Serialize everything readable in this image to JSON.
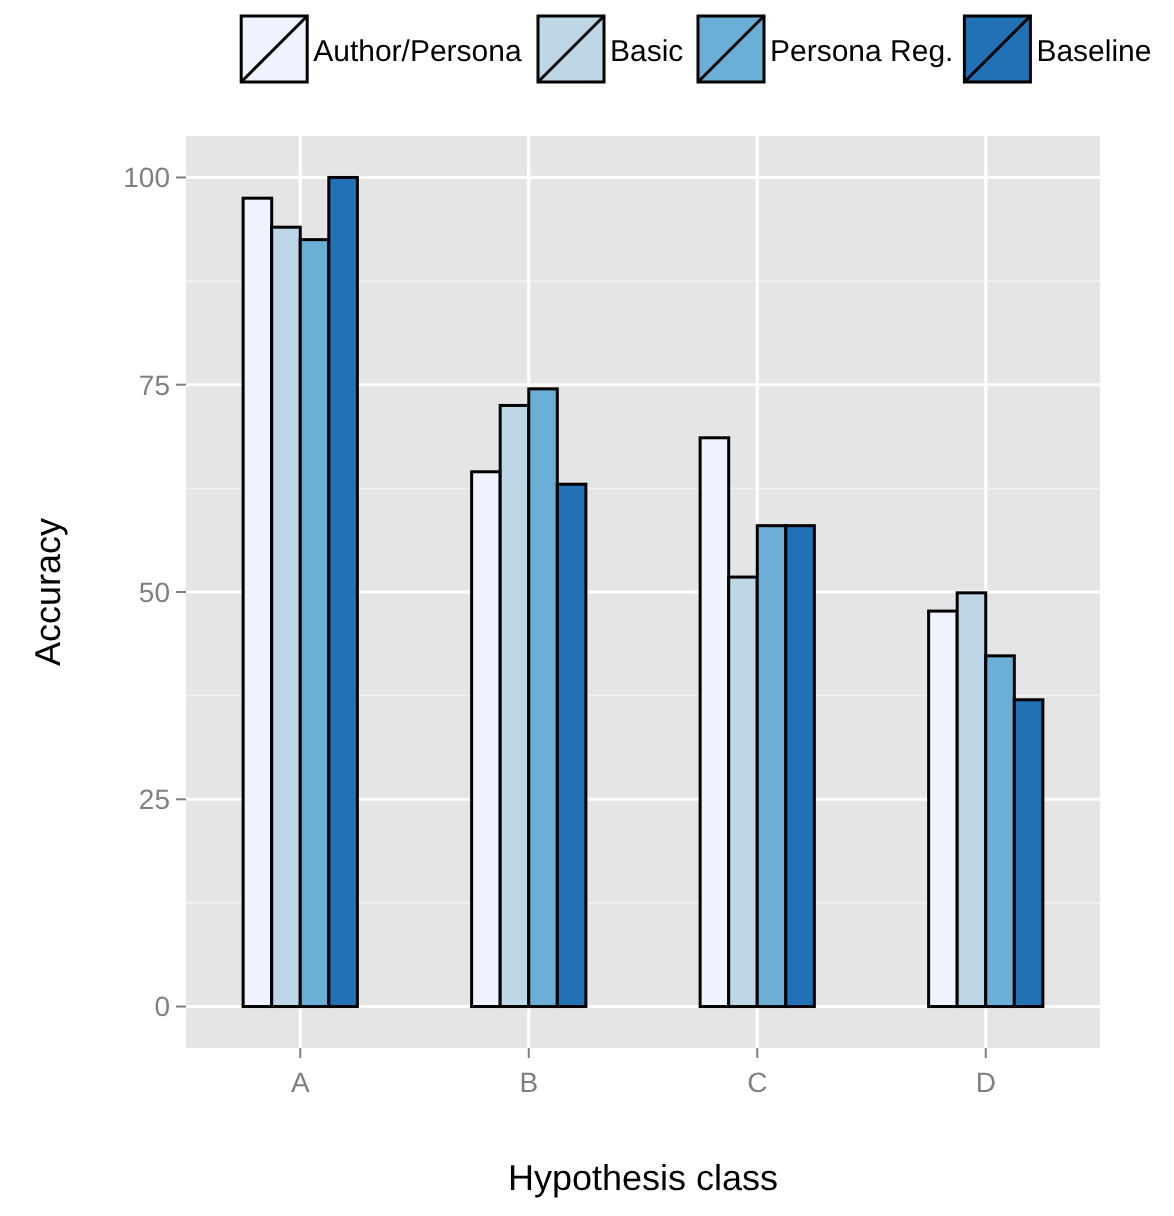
{
  "chart_data": {
    "type": "bar",
    "xlabel": "Hypothesis class",
    "ylabel": "Accuracy",
    "categories": [
      "A",
      "B",
      "C",
      "D"
    ],
    "series": [
      {
        "name": "Author/Persona",
        "color": "#eff3ff",
        "values": [
          97.5,
          64.5,
          68.6,
          47.7
        ]
      },
      {
        "name": "Basic",
        "color": "#bdd7e7",
        "values": [
          94,
          72.5,
          51.8,
          49.9
        ]
      },
      {
        "name": "Persona Reg.",
        "color": "#6baed6",
        "values": [
          92.5,
          74.5,
          58,
          42.3
        ]
      },
      {
        "name": "Baseline",
        "color": "#2171b5",
        "values": [
          100,
          63,
          58,
          37
        ]
      }
    ],
    "ylim": [
      -5,
      105
    ],
    "yticks": [
      0,
      25,
      50,
      75,
      100
    ],
    "grid": true,
    "legend": "top"
  }
}
